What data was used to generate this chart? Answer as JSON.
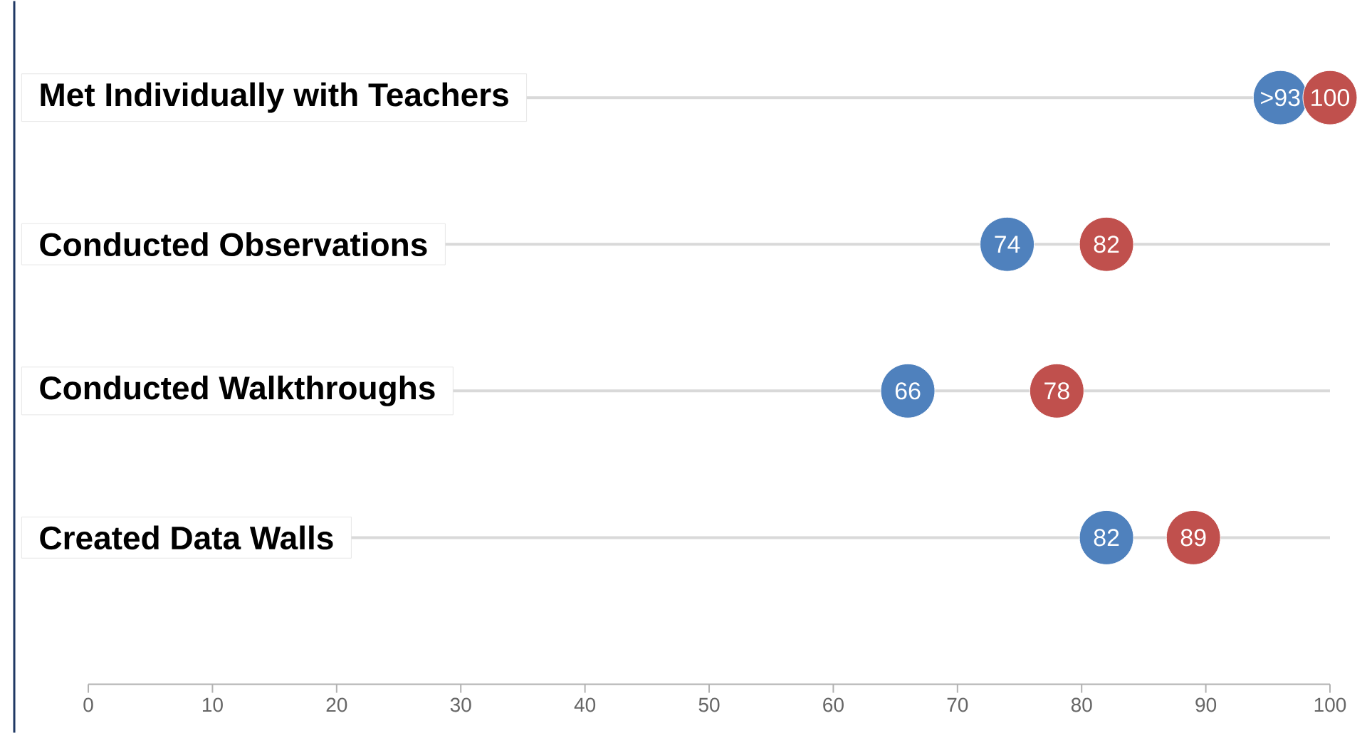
{
  "chart_data": {
    "type": "scatter",
    "orientation": "horizontal",
    "categories": [
      "Met Individually with Teachers",
      "Conducted Observations",
      "Conducted Walkthroughs",
      "Created Data Walls"
    ],
    "series": [
      {
        "color": "#4f81bd",
        "values": [
          96,
          74,
          66,
          82
        ],
        "value_labels": [
          ">93",
          "74",
          "66",
          "82"
        ]
      },
      {
        "color": "#c0504d",
        "values": [
          100,
          82,
          78,
          89
        ],
        "value_labels": [
          "100",
          "82",
          "78",
          "89"
        ]
      }
    ],
    "xlim": [
      0,
      100
    ],
    "xticks": [
      0,
      10,
      20,
      30,
      40,
      50,
      60,
      70,
      80,
      90,
      100
    ],
    "grid": "y"
  }
}
